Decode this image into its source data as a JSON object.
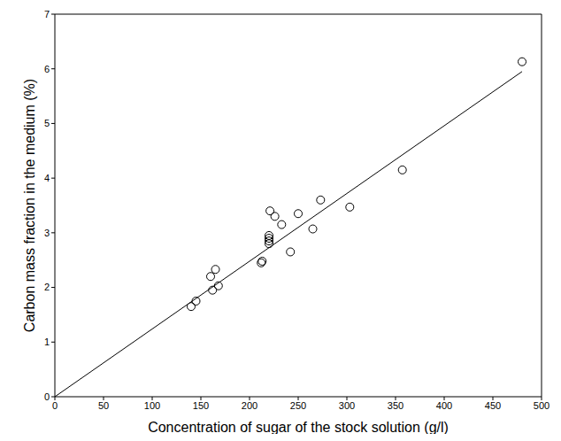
{
  "chart_data": {
    "type": "scatter",
    "x_label": "Concentration of sugar of the stock solution (g/l)",
    "y_label": "Carbon mass fraction in the medium (%)",
    "xlim": [
      0,
      500
    ],
    "xticks": [
      0,
      50,
      100,
      150,
      200,
      250,
      300,
      350,
      400,
      450,
      500
    ],
    "ylim": [
      0,
      7
    ],
    "yticks": [
      0,
      1,
      2,
      3,
      4,
      5,
      6,
      7
    ],
    "grid": false,
    "series": [
      {
        "type": "scatter",
        "marker": "circle-open",
        "color": "#000000",
        "x": [
          140,
          145,
          160,
          162,
          165,
          168,
          212,
          213,
          220,
          220,
          220,
          220,
          221,
          226,
          233,
          242,
          250,
          265,
          273,
          303,
          357,
          480
        ],
        "values": [
          1.65,
          1.75,
          2.2,
          1.95,
          2.33,
          2.03,
          2.45,
          2.48,
          2.8,
          2.85,
          2.9,
          2.95,
          3.4,
          3.3,
          3.15,
          2.65,
          3.35,
          3.07,
          3.6,
          3.47,
          4.15,
          6.13
        ]
      },
      {
        "type": "line",
        "line_style": "solid",
        "color": "#000000",
        "x": [
          0,
          480
        ],
        "values": [
          0,
          5.95
        ]
      }
    ]
  }
}
